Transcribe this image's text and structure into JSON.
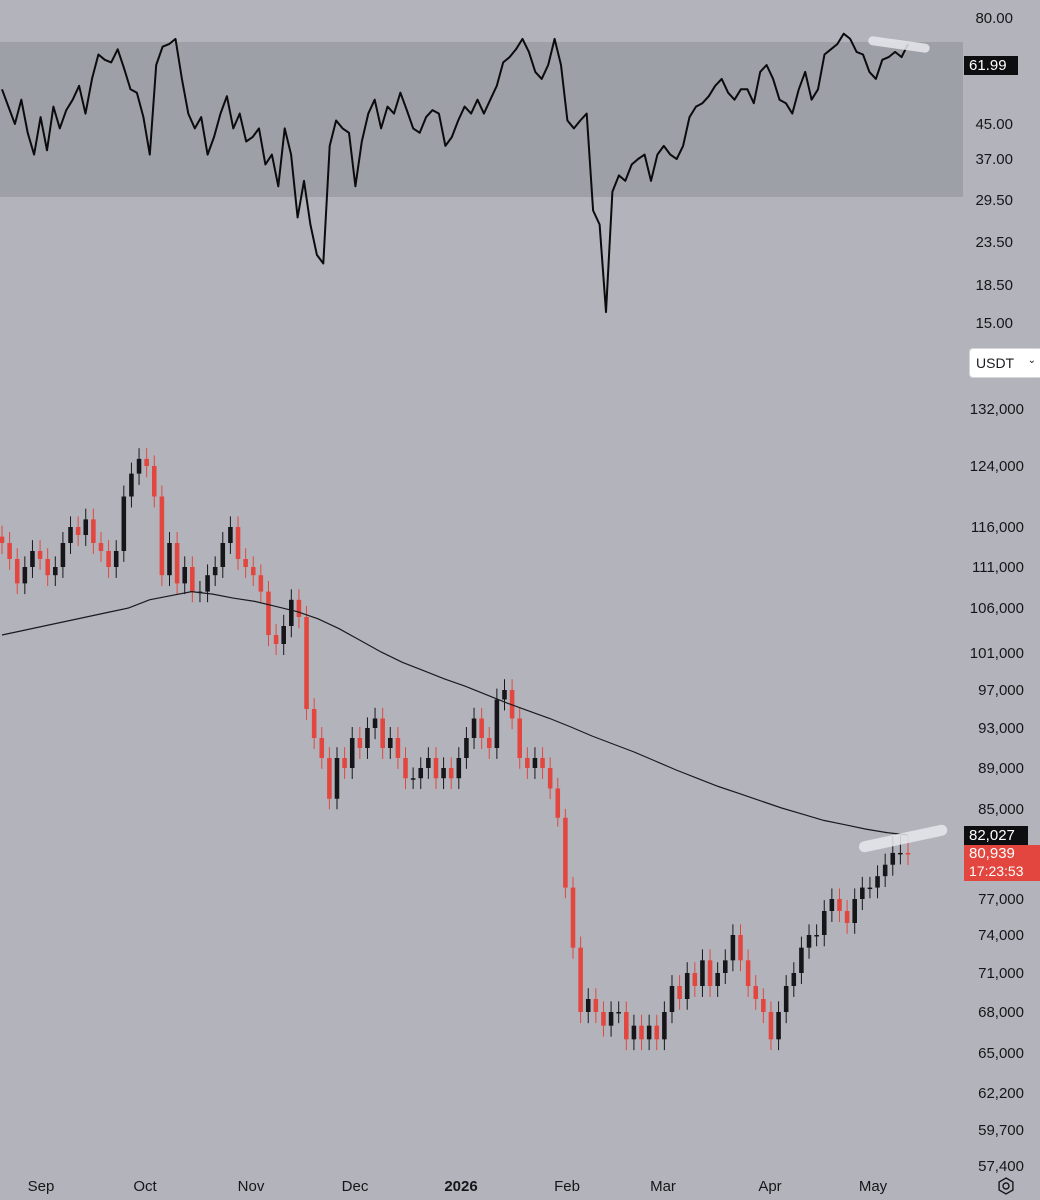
{
  "colors": {
    "background": "#b3b4bb",
    "rsi_band": "#9ea0a7",
    "up_candle": "#16161a",
    "down_candle": "#e2463e",
    "rsi_line": "#0b0b0d",
    "ma_line": "#1a1a1e",
    "price_badge": "#e2463e",
    "ma_badge": "#0e0e10",
    "highlight": "#e6e7ec"
  },
  "currency_select": {
    "label": "USDT",
    "icon": "chevron-down-icon"
  },
  "rsi_axis": {
    "ticks": [
      "80.00",
      "45.00",
      "37.00",
      "29.50",
      "23.50",
      "18.50",
      "15.00"
    ]
  },
  "price_axis": {
    "ticks": [
      "132,000",
      "124,000",
      "116,000",
      "111,000",
      "106,000",
      "101,000",
      "97,000",
      "93,000",
      "89,000",
      "85,000",
      "77,000",
      "74,000",
      "71,000",
      "68,000",
      "65,000",
      "62,200",
      "59,700",
      "57,400"
    ]
  },
  "time_axis": {
    "labels": [
      "Sep",
      "Oct",
      "Nov",
      "Dec",
      "2026",
      "Feb",
      "Mar",
      "Apr",
      "May"
    ]
  },
  "badges": {
    "rsi_value": "61.99",
    "ma_value": "82,027",
    "last_price": "80,939",
    "countdown": "17:23:53"
  },
  "settings_icon": "gear-icon",
  "chart_data": [
    {
      "type": "line",
      "indicator": "RSI",
      "ylim": [
        15,
        80
      ],
      "band": [
        30,
        70
      ],
      "last_value": 61.99,
      "x_range": [
        "Aug 20",
        "May 10"
      ],
      "values": [
        55,
        50,
        45,
        52,
        43,
        38,
        47,
        39,
        50,
        44,
        49,
        52,
        56,
        48,
        58,
        66,
        64,
        63,
        68,
        61,
        55,
        54,
        47,
        38,
        62,
        69,
        70,
        72,
        58,
        48,
        44,
        47,
        38,
        42,
        48,
        53,
        44,
        48,
        41,
        42,
        44,
        36,
        38,
        32,
        44,
        38,
        27,
        33,
        26,
        22,
        21,
        40,
        46,
        44,
        43,
        32,
        41,
        48,
        52,
        44,
        50,
        48,
        54,
        49,
        44,
        43,
        47,
        49,
        48,
        40,
        42,
        46,
        50,
        48,
        52,
        48,
        52,
        56,
        63,
        65,
        68,
        72,
        67,
        60,
        58,
        62,
        72,
        62,
        46,
        44,
        46,
        48,
        28,
        26,
        16,
        31,
        34,
        33,
        36,
        37,
        38,
        33,
        38,
        40,
        38,
        37,
        40,
        47,
        50,
        51,
        53,
        56,
        58,
        54,
        52,
        55,
        55,
        51,
        60,
        62,
        58,
        52,
        51,
        48,
        55,
        60,
        52,
        55,
        66,
        68,
        70,
        74,
        72,
        67,
        66,
        60,
        58,
        64,
        65,
        67,
        65,
        70
      ]
    },
    {
      "type": "candlestick",
      "series_name": "BTC/USDT",
      "x_range": [
        "Aug 20",
        "May 10"
      ],
      "ylim": [
        57400,
        132000
      ],
      "last_price": 80939,
      "moving_average_last": 82027,
      "close": [
        114000,
        112000,
        109000,
        111000,
        113000,
        112000,
        110000,
        111000,
        114000,
        116000,
        115000,
        117000,
        114000,
        113000,
        111000,
        113000,
        120000,
        123000,
        125000,
        124000,
        120000,
        110000,
        114000,
        109000,
        111000,
        108000,
        108000,
        110000,
        111000,
        114000,
        116000,
        112000,
        111000,
        110000,
        108000,
        103000,
        102000,
        104000,
        107000,
        105000,
        95000,
        92000,
        90000,
        86000,
        90000,
        89000,
        92000,
        91000,
        93000,
        94000,
        91000,
        92000,
        90000,
        88000,
        88000,
        89000,
        90000,
        88000,
        89000,
        88000,
        90000,
        92000,
        94000,
        92000,
        91000,
        96000,
        97000,
        94000,
        90000,
        89000,
        90000,
        89000,
        87000,
        84000,
        78000,
        73000,
        68000,
        69000,
        68000,
        67000,
        68000,
        68000,
        66000,
        67000,
        66000,
        67000,
        66000,
        68000,
        70000,
        69000,
        71000,
        70000,
        72000,
        70000,
        71000,
        72000,
        74000,
        72000,
        70000,
        69000,
        68000,
        66000,
        68000,
        70000,
        71000,
        73000,
        74000,
        74000,
        76000,
        77000,
        76000,
        75000,
        77000,
        78000,
        78000,
        79000,
        80000,
        81000,
        81000,
        80939
      ],
      "moving_average": [
        103000,
        103500,
        104000,
        104500,
        105000,
        105500,
        106000,
        107000,
        107500,
        108000,
        107700,
        107200,
        106800,
        106200,
        105600,
        104800,
        103700,
        102400,
        101100,
        100000,
        99100,
        98200,
        97400,
        96500,
        95600,
        94800,
        94000,
        93100,
        92200,
        91400,
        90600,
        89700,
        88800,
        88000,
        87200,
        86500,
        85800,
        85100,
        84400,
        83700,
        83200,
        82700,
        82300,
        82027
      ]
    }
  ]
}
